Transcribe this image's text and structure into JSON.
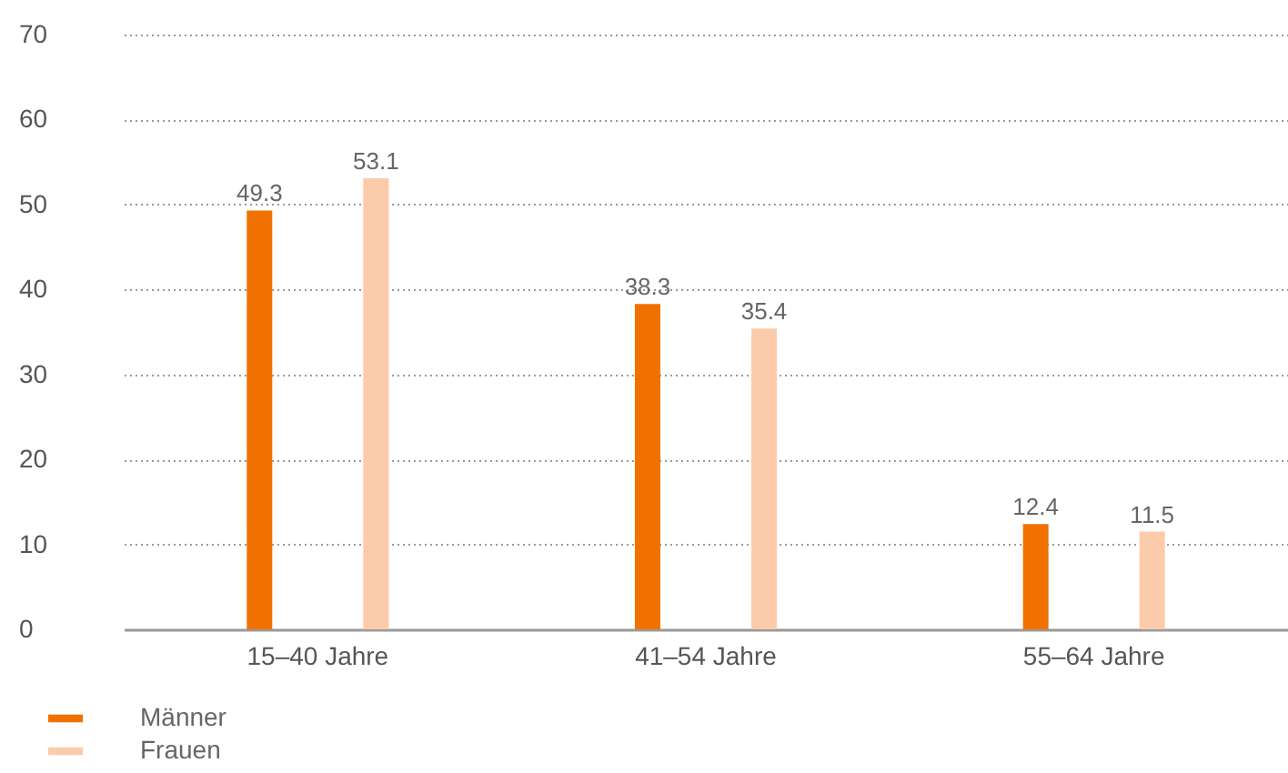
{
  "chart_data": {
    "type": "bar",
    "categories": [
      "15–40 Jahre",
      "41–54 Jahre",
      "55–64 Jahre"
    ],
    "series": [
      {
        "name": "Männer",
        "color": "#f07000",
        "values": [
          49.3,
          38.3,
          12.4
        ]
      },
      {
        "name": "Frauen",
        "color": "#fccbab",
        "values": [
          53.1,
          35.4,
          11.5
        ]
      }
    ],
    "ylim": [
      0,
      70
    ],
    "yticks": [
      0,
      10,
      20,
      30,
      40,
      50,
      60,
      70
    ],
    "grid": "y",
    "legend": "bottom left",
    "data_labels": true
  }
}
